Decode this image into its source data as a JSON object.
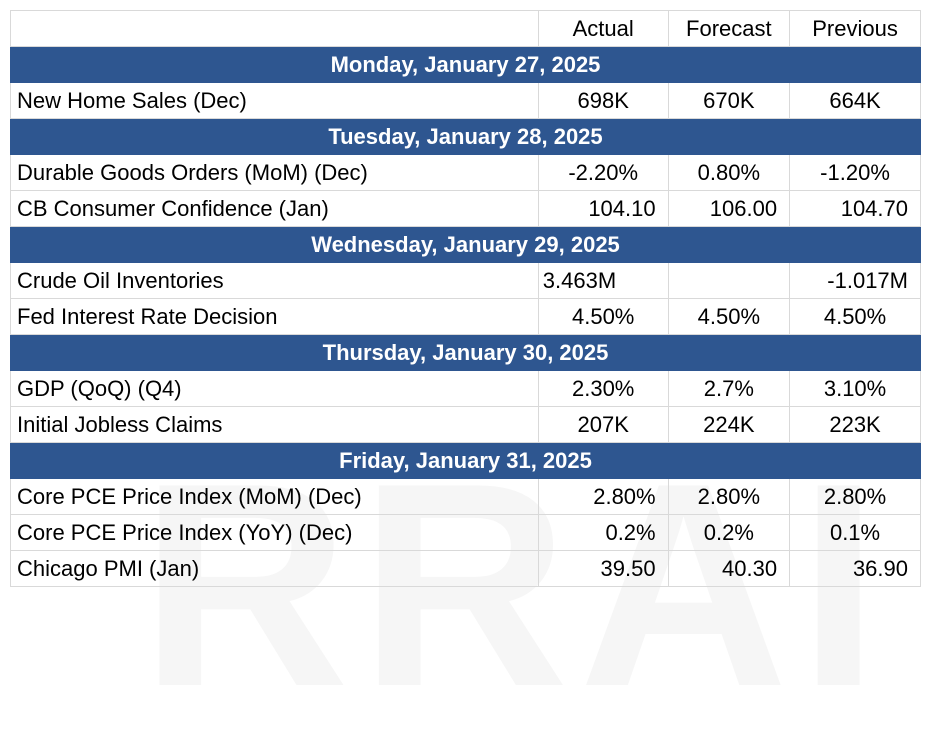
{
  "header": {
    "col_actual": "Actual",
    "col_forecast": "Forecast",
    "col_previous": "Previous"
  },
  "days": [
    {
      "date": "Monday, January 27, 2025",
      "events": [
        {
          "name": "New Home Sales (Dec)",
          "actual": "698K",
          "forecast": "670K",
          "previous": "664K"
        }
      ]
    },
    {
      "date": "Tuesday, January 28, 2025",
      "events": [
        {
          "name": "Durable Goods Orders (MoM) (Dec)",
          "actual": "-2.20%",
          "forecast": "0.80%",
          "previous": "-1.20%"
        },
        {
          "name": "CB Consumer Confidence (Jan)",
          "actual": "104.10",
          "forecast": "106.00",
          "previous": "104.70"
        }
      ]
    },
    {
      "date": "Wednesday, January 29, 2025",
      "events": [
        {
          "name": "Crude Oil Inventories",
          "actual": "3.463M",
          "forecast": "",
          "previous": "-1.017M"
        },
        {
          "name": "Fed Interest Rate Decision",
          "actual": "4.50%",
          "forecast": "4.50%",
          "previous": "4.50%"
        }
      ]
    },
    {
      "date": "Thursday, January 30, 2025",
      "events": [
        {
          "name": "GDP (QoQ) (Q4)",
          "actual": "2.30%",
          "forecast": "2.7%",
          "previous": "3.10%"
        },
        {
          "name": "Initial Jobless Claims",
          "actual": "207K",
          "forecast": "224K",
          "previous": "223K"
        }
      ]
    },
    {
      "date": "Friday, January 31, 2025",
      "events": [
        {
          "name": "Core PCE Price Index (MoM) (Dec)",
          "actual": "2.80%",
          "forecast": "2.80%",
          "previous": "2.80%"
        },
        {
          "name": "Core PCE Price Index (YoY) (Dec)",
          "actual": "0.2%",
          "forecast": "0.2%",
          "previous": "0.1%"
        },
        {
          "name": "Chicago PMI (Jan)",
          "actual": "39.50",
          "forecast": "40.30",
          "previous": "36.90"
        }
      ]
    }
  ],
  "colors": {
    "day_header_bg": "#2e5690",
    "day_header_text": "#ffffff",
    "grid": "#d9d9d9"
  }
}
